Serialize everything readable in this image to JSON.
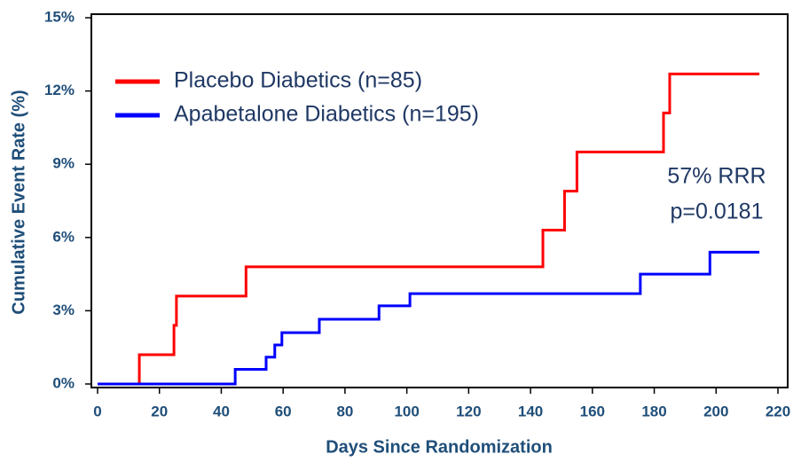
{
  "chart_data": {
    "type": "line",
    "step": "post",
    "x_label": "Days Since Randomization",
    "y_label": "Cumulative Event Rate (%)",
    "xlim": [
      0,
      220
    ],
    "xticks": [
      0,
      20,
      40,
      60,
      80,
      100,
      120,
      140,
      160,
      180,
      200,
      220
    ],
    "ylim": [
      0,
      15
    ],
    "yticks": [
      {
        "value": 0,
        "label": "0%"
      },
      {
        "value": 3,
        "label": "3%"
      },
      {
        "value": 6,
        "label": "6%"
      },
      {
        "value": 9,
        "label": "9%"
      },
      {
        "value": 12,
        "label": "12%"
      },
      {
        "value": 15,
        "label": "15%"
      }
    ],
    "legend": "upper left",
    "series": [
      {
        "name": "Placebo Diabetics (n=85)",
        "color": "#ff0000",
        "x": [
          0,
          13.5,
          24.7,
          25.5,
          48,
          144,
          151,
          155,
          183,
          185,
          214
        ],
        "values": [
          0,
          1.2,
          2.4,
          3.6,
          4.8,
          6.3,
          7.9,
          9.5,
          11.1,
          12.7,
          12.7
        ]
      },
      {
        "name": "Apabetalone Diabetics (n=195)",
        "color": "#0000ff",
        "x": [
          0,
          44.5,
          54.5,
          57.3,
          59.6,
          71.7,
          91,
          101,
          175.5,
          198,
          214
        ],
        "values": [
          0,
          0.6,
          1.1,
          1.6,
          2.1,
          2.65,
          3.2,
          3.7,
          4.5,
          5.4,
          5.4
        ]
      }
    ],
    "annotations": [
      "57% RRR",
      "p=0.0181"
    ]
  }
}
